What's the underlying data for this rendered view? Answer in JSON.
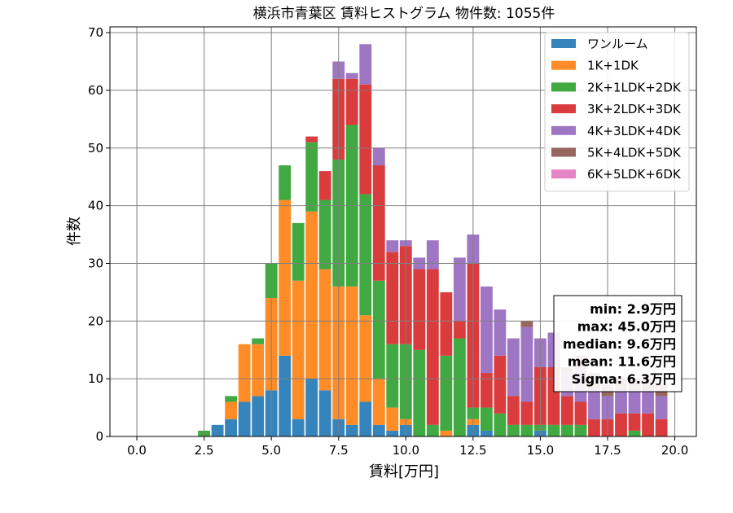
{
  "chart_data": {
    "type": "bar",
    "stacked": true,
    "title": "横浜市青葉区 賃料ヒストグラム 物件数: 1055件",
    "xlabel": "賃料[万円]",
    "ylabel": "件数",
    "xlim": [
      -1.0,
      20.8
    ],
    "ylim": [
      0,
      71
    ],
    "xticks": [
      0,
      2.5,
      5,
      7.5,
      10,
      12.5,
      15,
      17.5,
      20
    ],
    "xtick_labels": [
      "0.0",
      "2.5",
      "5.0",
      "7.5",
      "10.0",
      "12.5",
      "15.0",
      "17.5",
      "20.0"
    ],
    "yticks": [
      0,
      10,
      20,
      30,
      40,
      50,
      60,
      70
    ],
    "grid": true,
    "legend_position": "top-right",
    "bin_width": 0.5,
    "x": [
      2.5,
      3.0,
      3.5,
      4.0,
      4.5,
      5.0,
      5.5,
      6.0,
      6.5,
      7.0,
      7.5,
      8.0,
      8.5,
      9.0,
      9.5,
      10.0,
      10.5,
      11.0,
      11.5,
      12.0,
      12.5,
      13.0,
      13.5,
      14.0,
      14.5,
      15.0,
      15.5,
      16.0,
      16.5,
      17.0,
      17.5,
      18.0,
      18.5,
      19.0,
      19.5
    ],
    "series": [
      {
        "name": "ワンルーム",
        "color": "#1f77b4",
        "values": [
          0,
          2,
          3,
          6,
          7,
          8,
          14,
          3,
          10,
          8,
          3,
          2,
          6,
          2,
          1,
          2,
          0,
          0,
          0,
          0,
          2,
          1,
          0,
          0,
          0,
          1,
          0,
          0,
          0,
          0,
          0,
          0,
          0,
          0,
          0
        ]
      },
      {
        "name": "1K+1DK",
        "color": "#ff7f0e",
        "values": [
          0,
          0,
          3,
          10,
          9,
          16,
          27,
          24,
          29,
          21,
          23,
          24,
          15,
          8,
          4,
          1,
          0,
          0,
          1,
          0,
          1,
          0,
          0,
          0,
          0,
          0,
          0,
          0,
          0,
          0,
          0,
          0,
          0,
          0,
          0
        ]
      },
      {
        "name": "2K+1LDK+2DK",
        "color": "#2ca02c",
        "values": [
          1,
          0,
          1,
          0,
          1,
          6,
          6,
          10,
          12,
          12,
          22,
          28,
          21,
          17,
          11,
          13,
          15,
          2,
          13,
          17,
          2,
          4,
          4,
          2,
          2,
          1,
          2,
          2,
          2,
          0,
          0,
          0,
          1,
          0,
          0
        ]
      },
      {
        "name": "3K+2LDK+3DK",
        "color": "#d62728",
        "values": [
          0,
          0,
          0,
          0,
          0,
          0,
          0,
          0,
          1,
          5,
          14,
          8,
          19,
          20,
          16,
          17,
          14,
          27,
          11,
          3,
          25,
          6,
          10,
          5,
          4,
          10,
          10,
          5,
          4,
          3,
          3,
          4,
          3,
          4,
          3
        ]
      },
      {
        "name": "4K+3LDK+4DK",
        "color": "#9467bd",
        "values": [
          0,
          0,
          0,
          0,
          0,
          0,
          0,
          0,
          0,
          0,
          3,
          1,
          7,
          3,
          2,
          1,
          2,
          5,
          0,
          11,
          5,
          15,
          8,
          10,
          13,
          5,
          6,
          4,
          6,
          5,
          4,
          4,
          4,
          4,
          4
        ]
      },
      {
        "name": "5K+4LDK+5DK",
        "color": "#8c564b",
        "values": [
          0,
          0,
          0,
          0,
          0,
          0,
          0,
          0,
          0,
          0,
          0,
          0,
          0,
          0,
          0,
          0,
          0,
          0,
          0,
          0,
          0,
          0,
          0,
          0,
          1,
          0,
          0,
          1,
          2,
          3,
          2,
          2,
          2,
          2,
          2
        ]
      },
      {
        "name": "6K+5LDK+6DK",
        "color": "#e377c2",
        "values": [
          0,
          0,
          0,
          0,
          0,
          0,
          0,
          0,
          0,
          0,
          0,
          0,
          0,
          0,
          0,
          0,
          0,
          0,
          0,
          0,
          0,
          0,
          0,
          0,
          0,
          0,
          0,
          0,
          0,
          0,
          0,
          0,
          0,
          0,
          0
        ]
      }
    ],
    "stats": [
      "min: 2.9万円",
      "max: 45.0万円",
      "median: 9.6万円",
      "mean: 11.6万円",
      "Sigma: 6.3万円"
    ]
  }
}
